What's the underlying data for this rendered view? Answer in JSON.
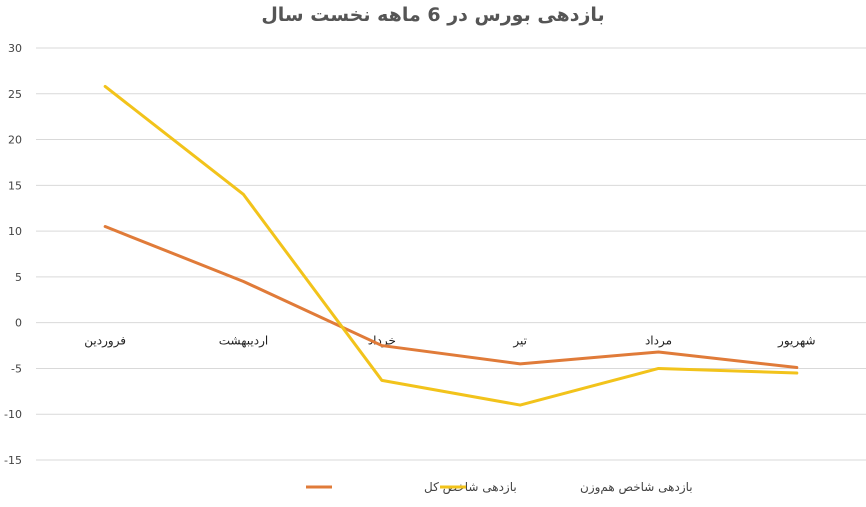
{
  "chart_data": {
    "type": "line",
    "title": "بازدهی بورس در 6 ماهه نخست سال",
    "categories": [
      "فروردین",
      "اردیبهشت",
      "خرداد",
      "تیر",
      "مرداد",
      "شهریور"
    ],
    "ylim": [
      -15,
      30
    ],
    "yticks": [
      30,
      25,
      20,
      15,
      10,
      5,
      0,
      -5,
      -10,
      -15
    ],
    "grid": true,
    "legend_position": "bottom",
    "series": [
      {
        "name": "بازدهی شاخص کل",
        "color": "#E07B39",
        "values": [
          10.5,
          4.5,
          -2.5,
          -4.5,
          -3.2,
          -4.9
        ]
      },
      {
        "name": "بازدهی شاخص هم‌وزن",
        "color": "#F2C31B",
        "values": [
          25.8,
          14.0,
          -6.3,
          -9.0,
          -5.0,
          -5.5
        ]
      }
    ]
  }
}
